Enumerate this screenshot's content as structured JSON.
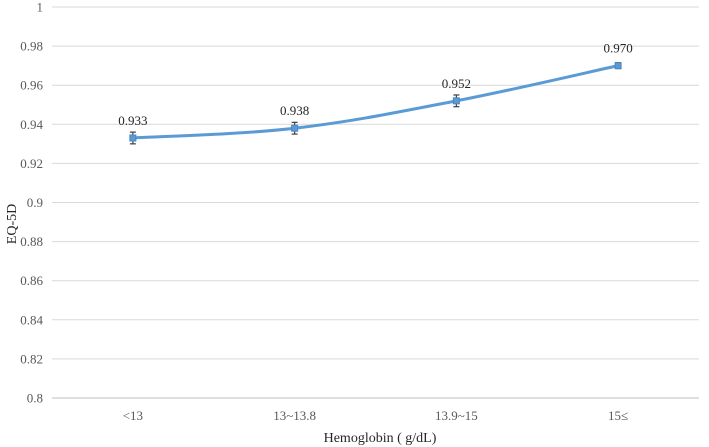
{
  "chart_data": {
    "type": "line",
    "categories": [
      "<13",
      "13~13.8",
      "13.9~15",
      "15≤"
    ],
    "series": [
      {
        "values": [
          0.933,
          0.938,
          0.952,
          0.97
        ],
        "error": [
          0.003,
          0.003,
          0.003,
          0.0015
        ],
        "data_labels": [
          "0.933",
          "0.938",
          "0.952",
          "0.970"
        ]
      }
    ],
    "xlabel": "Hemoglobin ( g/dL)",
    "ylabel": "EQ-5D",
    "ylim": [
      0.8,
      1.0
    ],
    "yticks": [
      0.8,
      0.82,
      0.84,
      0.86,
      0.88,
      0.9,
      0.92,
      0.94,
      0.96,
      0.98,
      1
    ],
    "ytick_labels": [
      "0.8",
      "0.82",
      "0.84",
      "0.86",
      "0.88",
      "0.9",
      "0.92",
      "0.94",
      "0.96",
      "0.98",
      "1"
    ],
    "grid": true,
    "line_color": "#5b9bd5",
    "error_color": "#404040"
  }
}
